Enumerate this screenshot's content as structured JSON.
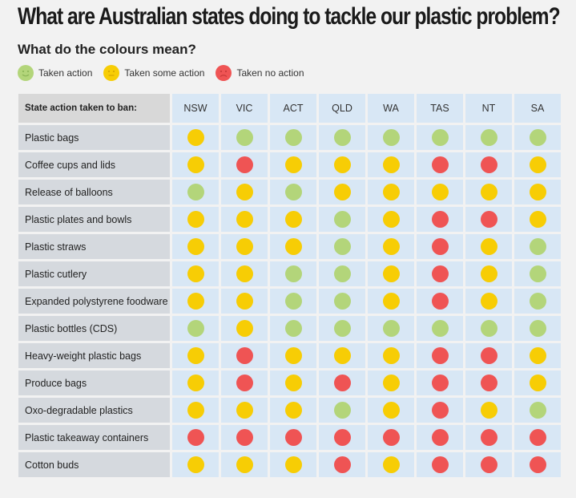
{
  "title": "What are Australian states doing to tackle our plastic problem?",
  "subtitle": "What do the colours mean?",
  "legend": [
    {
      "label": "Taken action",
      "status": "green",
      "icon": "smiley-face-icon"
    },
    {
      "label": "Taken some action",
      "status": "yellow",
      "icon": "neutral-face-icon"
    },
    {
      "label": "Taken no action",
      "status": "red",
      "icon": "sad-face-icon"
    }
  ],
  "colors": {
    "green": "#b3d57a",
    "yellow": "#f7cd05",
    "red": "#ef5454"
  },
  "chart_data": {
    "type": "table",
    "corner_label": "State action taken to ban:",
    "columns": [
      "NSW",
      "VIC",
      "ACT",
      "QLD",
      "WA",
      "TAS",
      "NT",
      "SA"
    ],
    "rows": [
      {
        "item": "Plastic bags",
        "values": [
          "yellow",
          "green",
          "green",
          "green",
          "green",
          "green",
          "green",
          "green"
        ]
      },
      {
        "item": "Coffee cups and lids",
        "values": [
          "yellow",
          "red",
          "yellow",
          "yellow",
          "yellow",
          "red",
          "red",
          "yellow"
        ]
      },
      {
        "item": "Release of balloons",
        "values": [
          "green",
          "yellow",
          "green",
          "yellow",
          "yellow",
          "yellow",
          "yellow",
          "yellow"
        ]
      },
      {
        "item": "Plastic plates and bowls",
        "values": [
          "yellow",
          "yellow",
          "yellow",
          "green",
          "yellow",
          "red",
          "red",
          "yellow"
        ]
      },
      {
        "item": "Plastic straws",
        "values": [
          "yellow",
          "yellow",
          "yellow",
          "green",
          "yellow",
          "red",
          "yellow",
          "green"
        ]
      },
      {
        "item": "Plastic cutlery",
        "values": [
          "yellow",
          "yellow",
          "green",
          "green",
          "yellow",
          "red",
          "yellow",
          "green"
        ]
      },
      {
        "item": "Expanded polystyrene foodware",
        "values": [
          "yellow",
          "yellow",
          "green",
          "green",
          "yellow",
          "red",
          "yellow",
          "green"
        ]
      },
      {
        "item": "Plastic bottles (CDS)",
        "values": [
          "green",
          "yellow",
          "green",
          "green",
          "green",
          "green",
          "green",
          "green"
        ]
      },
      {
        "item": "Heavy-weight plastic bags",
        "values": [
          "yellow",
          "red",
          "yellow",
          "yellow",
          "yellow",
          "red",
          "red",
          "yellow"
        ]
      },
      {
        "item": "Produce bags",
        "values": [
          "yellow",
          "red",
          "yellow",
          "red",
          "yellow",
          "red",
          "red",
          "yellow"
        ]
      },
      {
        "item": "Oxo-degradable plastics",
        "values": [
          "yellow",
          "yellow",
          "yellow",
          "green",
          "yellow",
          "red",
          "yellow",
          "green"
        ]
      },
      {
        "item": "Plastic takeaway containers",
        "values": [
          "red",
          "red",
          "red",
          "red",
          "red",
          "red",
          "red",
          "red"
        ]
      },
      {
        "item": "Cotton buds",
        "values": [
          "yellow",
          "yellow",
          "yellow",
          "red",
          "yellow",
          "red",
          "red",
          "red"
        ]
      }
    ]
  }
}
